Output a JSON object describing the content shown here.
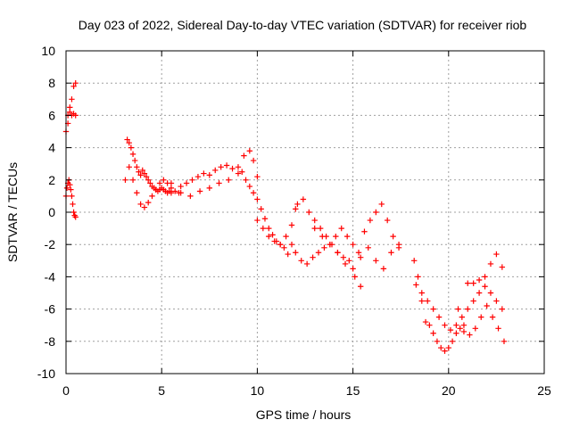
{
  "chart_data": {
    "type": "scatter",
    "title": "Day 023 of 2022, Sidereal Day-to-day VTEC variation (SDTVAR) for receiver riob",
    "xlabel": "GPS time / hours",
    "ylabel": "SDTVAR / TECUs",
    "xlim": [
      0,
      25
    ],
    "ylim": [
      -10,
      10
    ],
    "xticks": [
      0,
      5,
      10,
      15,
      20,
      25
    ],
    "yticks": [
      -10,
      -8,
      -6,
      -4,
      -2,
      0,
      2,
      4,
      6,
      8,
      10
    ],
    "grid": true,
    "marker": "+",
    "color": "#ff0000",
    "series": [
      {
        "name": "SDTVAR riob",
        "x": [
          0.0,
          0.1,
          0.2,
          0.3,
          0.4,
          0.5,
          0.0,
          0.05,
          0.1,
          0.15,
          0.2,
          0.25,
          0.3,
          0.35,
          0.4,
          0.45,
          0.5,
          0.1,
          0.2,
          0.3,
          0.4,
          0.5,
          3.2,
          3.3,
          3.4,
          3.5,
          3.6,
          3.7,
          3.8,
          3.9,
          4.0,
          4.1,
          4.2,
          4.3,
          4.4,
          4.5,
          4.6,
          4.7,
          4.8,
          4.9,
          5.0,
          5.1,
          5.2,
          5.3,
          5.4,
          5.5,
          3.1,
          3.3,
          3.5,
          3.7,
          3.9,
          4.1,
          4.3,
          4.5,
          4.7,
          4.9,
          5.1,
          5.3,
          5.5,
          5.7,
          5.9,
          6.0,
          6.3,
          6.6,
          6.9,
          7.2,
          7.5,
          7.8,
          8.1,
          8.4,
          8.7,
          9.0,
          9.3,
          9.6,
          9.8,
          10.0,
          5.5,
          6.0,
          6.5,
          7.0,
          7.5,
          8.0,
          8.5,
          9.0,
          9.2,
          9.4,
          9.6,
          9.8,
          10.0,
          10.2,
          10.4,
          10.6,
          10.8,
          11.0,
          11.2,
          11.4,
          11.6,
          11.8,
          12.0,
          10.0,
          10.3,
          10.6,
          10.9,
          11.2,
          11.5,
          11.8,
          12.1,
          12.4,
          12.7,
          13.0,
          13.3,
          13.6,
          13.9,
          14.2,
          14.5,
          14.8,
          15.1,
          15.4,
          12.0,
          12.3,
          12.6,
          12.9,
          13.2,
          13.5,
          13.8,
          14.1,
          14.4,
          14.7,
          15.0,
          15.3,
          15.6,
          15.9,
          16.2,
          16.5,
          16.8,
          17.1,
          17.4,
          13.0,
          13.4,
          13.8,
          14.2,
          14.6,
          15.0,
          15.4,
          15.8,
          16.2,
          16.6,
          17.0,
          17.4,
          18.2,
          18.4,
          18.6,
          18.8,
          19.0,
          19.2,
          19.4,
          19.6,
          19.8,
          20.0,
          20.2,
          20.4,
          20.6,
          20.8,
          18.3,
          18.6,
          18.9,
          19.2,
          19.5,
          19.8,
          20.1,
          20.4,
          20.7,
          21.0,
          21.3,
          21.6,
          21.9,
          22.2,
          22.5,
          22.8,
          20.5,
          20.8,
          21.1,
          21.4,
          21.7,
          22.0,
          22.3,
          22.6,
          22.9,
          21.0,
          21.3,
          21.6,
          21.9,
          22.2,
          22.5,
          22.8
        ],
        "y": [
          5.0,
          5.5,
          6.5,
          7.0,
          7.8,
          8.0,
          1.0,
          1.5,
          1.8,
          2.0,
          1.7,
          1.4,
          1.0,
          0.5,
          0.0,
          -0.2,
          -0.3,
          6.0,
          6.2,
          6.0,
          6.1,
          6.0,
          4.5,
          4.3,
          4.0,
          3.6,
          3.2,
          2.8,
          2.5,
          2.3,
          2.6,
          2.4,
          2.2,
          2.0,
          1.8,
          1.6,
          1.5,
          1.4,
          1.3,
          1.4,
          1.5,
          1.4,
          1.3,
          1.2,
          1.3,
          1.2,
          2.0,
          2.8,
          2.0,
          1.2,
          0.5,
          0.3,
          0.6,
          1.0,
          1.4,
          1.8,
          2.0,
          1.8,
          1.5,
          1.3,
          1.2,
          1.6,
          1.8,
          2.0,
          2.2,
          2.4,
          2.3,
          2.6,
          2.8,
          2.9,
          2.7,
          2.8,
          3.5,
          3.8,
          3.2,
          2.2,
          1.8,
          1.2,
          1.0,
          1.3,
          1.5,
          1.8,
          2.0,
          2.4,
          2.5,
          2.0,
          1.6,
          1.2,
          0.8,
          0.2,
          -0.4,
          -1.0,
          -1.4,
          -1.8,
          -2.0,
          -2.2,
          -2.6,
          -2.0,
          0.2,
          -0.5,
          -1.0,
          -1.5,
          -1.8,
          -2.0,
          -1.5,
          -0.8,
          0.5,
          0.8,
          0.0,
          -0.5,
          -1.0,
          -1.5,
          -2.0,
          -2.5,
          -2.8,
          -3.0,
          -4.0,
          -4.6,
          -2.5,
          -3.0,
          -3.2,
          -2.8,
          -2.5,
          -2.2,
          -2.0,
          -1.5,
          -1.0,
          -1.5,
          -2.0,
          -2.5,
          -1.2,
          -0.5,
          0.0,
          0.5,
          -0.5,
          -1.5,
          -2.2,
          -1.0,
          -1.5,
          -2.0,
          -2.5,
          -3.2,
          -3.5,
          -2.8,
          -2.2,
          -3.0,
          -3.5,
          -2.5,
          -2.0,
          -3.0,
          -4.0,
          -5.5,
          -6.8,
          -7.0,
          -7.5,
          -8.0,
          -8.4,
          -8.6,
          -8.4,
          -8.0,
          -7.5,
          -7.2,
          -7.0,
          -4.5,
          -5.0,
          -5.5,
          -6.0,
          -6.5,
          -7.0,
          -7.3,
          -7.0,
          -6.5,
          -6.0,
          -5.5,
          -5.0,
          -4.6,
          -5.0,
          -5.5,
          -6.0,
          -6.0,
          -7.4,
          -7.6,
          -7.2,
          -6.5,
          -5.8,
          -6.5,
          -7.2,
          -8.0,
          -4.4,
          -4.4,
          -4.2,
          -4.0,
          -3.2,
          -2.6,
          -3.4
        ]
      }
    ]
  }
}
